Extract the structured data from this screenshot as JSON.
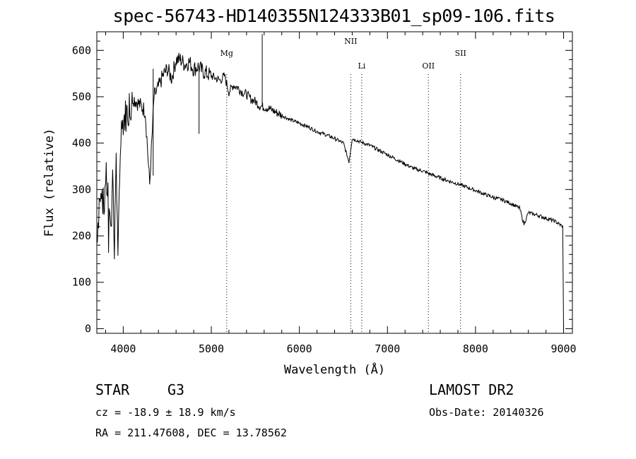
{
  "chart_data": {
    "type": "line",
    "title": "spec-56743-HD140355N124333B01_sp09-106.fits",
    "xlabel": "Wavelength (Å)",
    "ylabel": "Flux (relative)",
    "xlim": [
      3700,
      9100
    ],
    "ylim": [
      -10,
      640
    ],
    "x_ticks": [
      4000,
      5000,
      6000,
      7000,
      8000,
      9000
    ],
    "y_ticks": [
      0,
      100,
      200,
      300,
      400,
      500,
      600
    ],
    "series": [
      {
        "x": [
          3700,
          3720,
          3740,
          3760,
          3780,
          3800,
          3820,
          3840,
          3860,
          3880,
          3900,
          3920,
          3940,
          3960,
          3980,
          4000,
          4050,
          4100,
          4150,
          4200,
          4250,
          4300,
          4350,
          4400,
          4450,
          4500,
          4550,
          4600,
          4650,
          4700,
          4750,
          4800,
          4850,
          4900,
          4950,
          5000,
          5050,
          5100,
          5150,
          5200,
          5250,
          5300,
          5350,
          5400,
          5450,
          5500,
          5550,
          5600,
          5650,
          5700,
          5800,
          5900,
          6000,
          6100,
          6200,
          6300,
          6400,
          6500,
          6563,
          6600,
          6700,
          6800,
          6900,
          7000,
          7100,
          7200,
          7300,
          7400,
          7500,
          7600,
          7700,
          7800,
          7900,
          8000,
          8100,
          8200,
          8300,
          8400,
          8500,
          8550,
          8600,
          8700,
          8800,
          8900,
          8990,
          9000
        ],
        "y": [
          200,
          250,
          320,
          300,
          250,
          330,
          300,
          280,
          200,
          350,
          150,
          400,
          120,
          360,
          430,
          450,
          470,
          500,
          490,
          480,
          470,
          310,
          500,
          520,
          545,
          560,
          540,
          580,
          580,
          570,
          575,
          560,
          565,
          555,
          550,
          545,
          540,
          535,
          545,
          510,
          525,
          520,
          510,
          505,
          495,
          490,
          480,
          478,
          475,
          470,
          460,
          450,
          443,
          435,
          425,
          418,
          410,
          400,
          360,
          410,
          402,
          395,
          385,
          375,
          365,
          355,
          345,
          340,
          332,
          325,
          318,
          312,
          305,
          298,
          290,
          283,
          278,
          270,
          260,
          225,
          250,
          245,
          238,
          232,
          220,
          0
        ]
      }
    ],
    "spikes": [
      {
        "x": 5578,
        "y": 635
      },
      {
        "x": 4861,
        "y": 420
      },
      {
        "x": 4340,
        "y": 330
      }
    ],
    "line_markers": [
      {
        "label": "Mg",
        "x": 5175
      },
      {
        "label": "NII",
        "x": 6583
      },
      {
        "label": "Li",
        "x": 6708
      },
      {
        "label": "OII",
        "x": 7465
      },
      {
        "label": "SII",
        "x": 7830
      }
    ]
  },
  "info": {
    "class_label": "STAR",
    "subclass": "G3",
    "survey": "LAMOST DR2",
    "cz": "cz = -18.9 ± 18.9 km/s",
    "obs_date": "Obs-Date: 20140326",
    "coords": "RA = 211.47608, DEC =  13.78562"
  }
}
